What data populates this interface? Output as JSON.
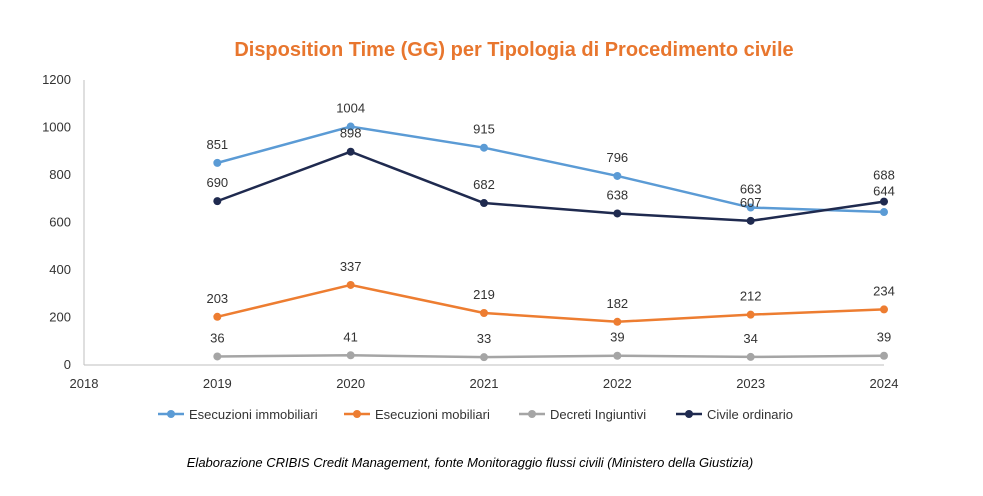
{
  "colors": {
    "title": "#E8762E",
    "axis": "#BFBFBF",
    "text": "#333333"
  },
  "caption": "Elaborazione CRIBIS Credit Management, fonte Monitoraggio flussi civili (Ministero della Giustizia)",
  "chart_data": {
    "type": "line",
    "title": "Disposition Time (GG) per Tipologia di Procedimento civile",
    "xlabel": "",
    "ylabel": "",
    "x_ticks": [
      "2018",
      "2019",
      "2020",
      "2021",
      "2022",
      "2023",
      "2024"
    ],
    "y_ticks": [
      "0",
      "200",
      "400",
      "600",
      "800",
      "1000",
      "1200"
    ],
    "ylim": [
      0,
      1200
    ],
    "grid": false,
    "legend_position": "bottom",
    "x": [
      2019,
      2020,
      2021,
      2022,
      2023,
      2024
    ],
    "series": [
      {
        "name": "Esecuzioni immobiliari",
        "color": "#5B9BD5",
        "values": [
          851,
          1004,
          915,
          796,
          663,
          644
        ]
      },
      {
        "name": "Esecuzioni mobiliari",
        "color": "#ED7D31",
        "values": [
          203,
          337,
          219,
          182,
          212,
          234
        ]
      },
      {
        "name": "Decreti Ingiuntivi",
        "color": "#A5A5A5",
        "values": [
          36,
          41,
          33,
          39,
          34,
          39
        ]
      },
      {
        "name": "Civile ordinario",
        "color": "#1F2A4F",
        "values": [
          690,
          898,
          682,
          638,
          607,
          688
        ]
      }
    ]
  }
}
